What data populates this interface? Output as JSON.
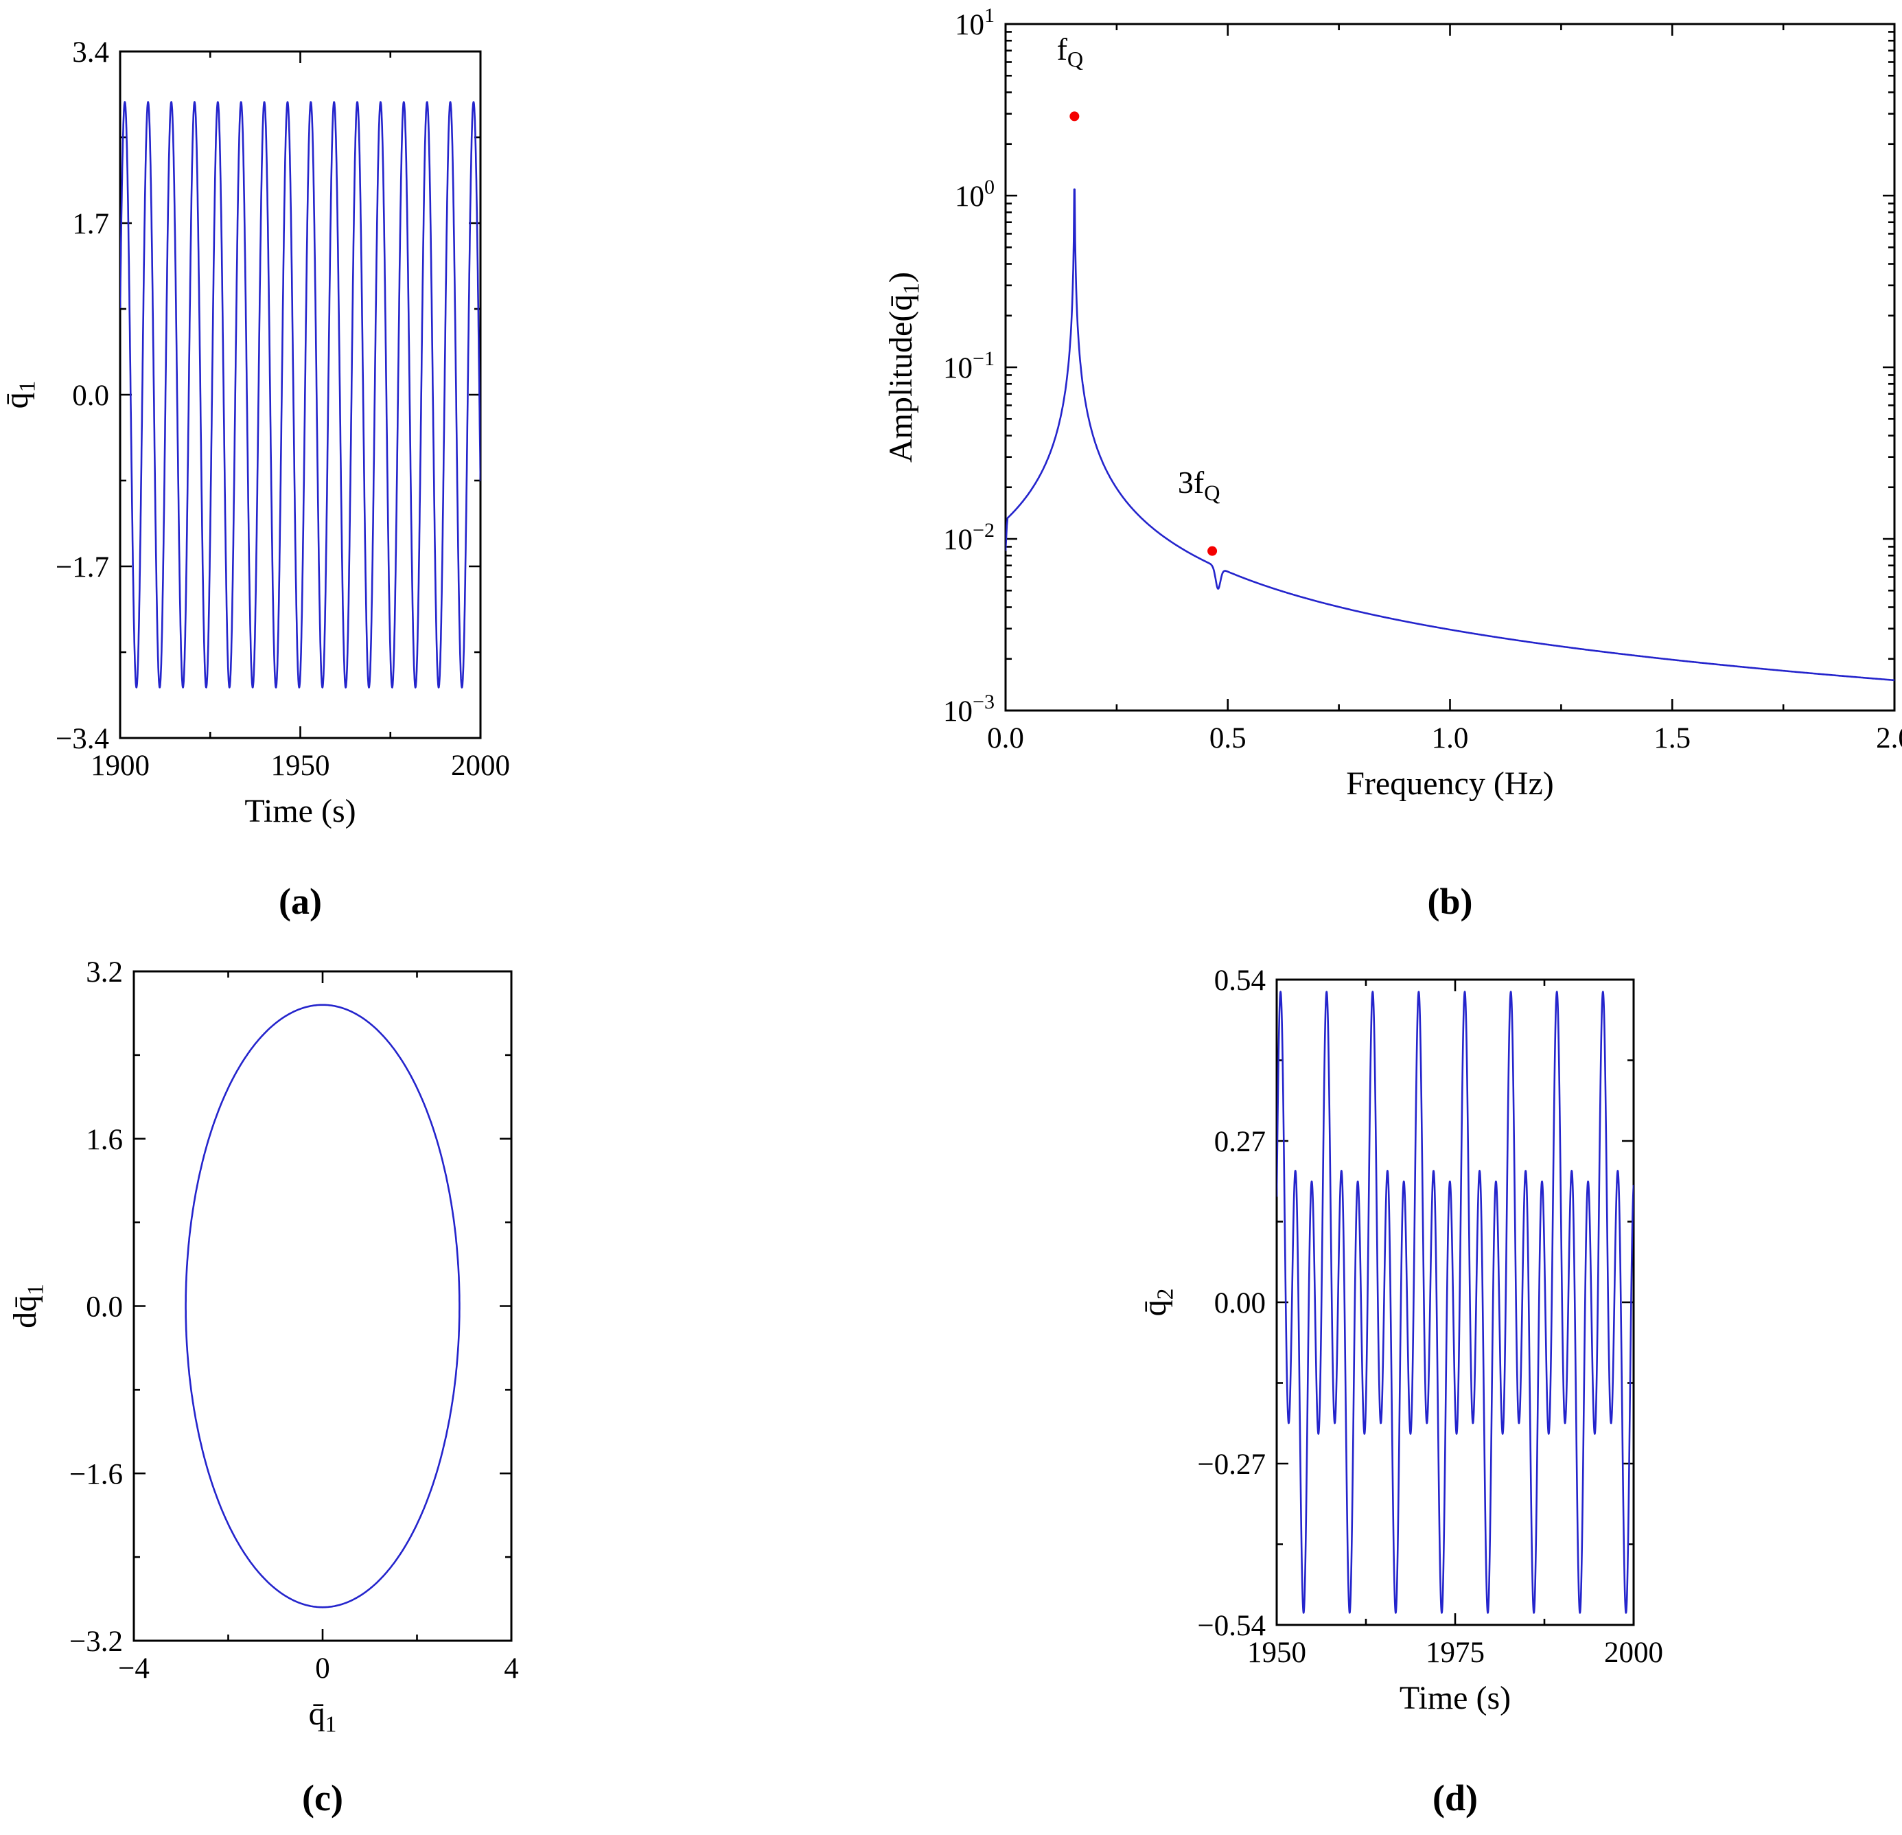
{
  "figure": {
    "background": "#ffffff",
    "curve_color": "#2424cc",
    "marker_color": "#f40000",
    "axis_color": "#000000"
  },
  "captions": {
    "a": "(a)",
    "b": "(b)",
    "c": "(c)",
    "d": "(d)"
  },
  "chart_data": [
    {
      "id": "a",
      "type": "line",
      "title": "",
      "xlabel": "Time (s)",
      "ylabel": "q̄_1",
      "xlim": [
        1900,
        2000
      ],
      "ylim": [
        -3.4,
        3.4
      ],
      "xticks": {
        "values": [
          1900,
          1950,
          2000
        ],
        "labels": [
          "1900",
          "1950",
          "2000"
        ]
      },
      "yticks": {
        "values": [
          3.4,
          1.7,
          0.0,
          -1.7,
          -3.4
        ],
        "labels": [
          "3.4",
          "1.7",
          "0.0",
          "−1.7",
          "−3.4"
        ]
      },
      "xminor": [
        1925,
        1975
      ],
      "yminor": [
        2.55,
        0.85,
        -0.85,
        -2.55
      ],
      "grid": false,
      "signal": {
        "kind": "sum_sines",
        "t0": 1900,
        "components": [
          {
            "amplitude": 2.9,
            "frequency": 0.155,
            "phase": 0.3
          }
        ]
      },
      "samples": 2000
    },
    {
      "id": "b",
      "type": "line",
      "title": "",
      "xlabel": "Frequency (Hz)",
      "ylabel": "Amplitude(q̄_1)",
      "yscale": "log",
      "xlim": [
        0,
        2
      ],
      "ylim": [
        0.001,
        10
      ],
      "xticks": {
        "values": [
          0.0,
          0.5,
          1.0,
          1.5,
          2.0
        ],
        "labels": [
          "0.0",
          "0.5",
          "1.0",
          "1.5",
          "2.0"
        ]
      },
      "yticks_exp": [
        1,
        0,
        -1,
        -2,
        -3
      ],
      "xminor": [
        0.25,
        0.75,
        1.25,
        1.75
      ],
      "grid": false,
      "spectrum": {
        "C": 0.00256,
        "p": 0.87,
        "eps": 0.00088,
        "fQ": 0.155,
        "peak_amp": 2.9,
        "lead_in": [
          [
            0.0,
            0.0085
          ],
          [
            0.003,
            0.012
          ]
        ],
        "notch": {
          "center": 0.478,
          "width": 0.008,
          "depth": 0.25
        }
      },
      "markers": [
        {
          "x": 0.155,
          "y": 2.9,
          "label": "f_Q",
          "label_x": 0.145,
          "label_y": 6.2
        },
        {
          "x": 0.465,
          "y": 0.0085,
          "label": "3f_Q",
          "label_x": 0.435,
          "label_y": 0.0185
        }
      ],
      "samples": 1800
    },
    {
      "id": "c",
      "type": "line",
      "title": "",
      "xlabel": "q̄_1",
      "ylabel": "dq̄_1",
      "xlim": [
        -4,
        4
      ],
      "ylim": [
        -3.2,
        3.2
      ],
      "xticks": {
        "values": [
          -4,
          0,
          4
        ],
        "labels": [
          "−4",
          "0",
          "4"
        ]
      },
      "yticks": {
        "values": [
          3.2,
          1.6,
          0.0,
          -1.6,
          -3.2
        ],
        "labels": [
          "3.2",
          "1.6",
          "0.0",
          "−1.6",
          "−3.2"
        ]
      },
      "xminor": [
        -2,
        2
      ],
      "yminor": [
        2.4,
        0.8,
        -0.8,
        -2.4
      ],
      "grid": false,
      "ellipse": {
        "cx": 0,
        "cy": 0,
        "rx": 2.9,
        "ry": 2.88
      },
      "samples": 720
    },
    {
      "id": "d",
      "type": "line",
      "title": "",
      "xlabel": "Time (s)",
      "ylabel": "q̄_2",
      "xlim": [
        1950,
        2000
      ],
      "ylim": [
        -0.54,
        0.54
      ],
      "xticks": {
        "values": [
          1950,
          1975,
          2000
        ],
        "labels": [
          "1950",
          "1975",
          "2000"
        ]
      },
      "yticks": {
        "values": [
          0.54,
          0.27,
          0.0,
          -0.27,
          -0.54
        ],
        "labels": [
          "0.54",
          "0.27",
          "0.00",
          "−0.27",
          "−0.54"
        ]
      },
      "xminor": [
        1962.5,
        1987.5
      ],
      "yminor": [
        0.405,
        0.135,
        -0.135,
        -0.405
      ],
      "grid": false,
      "signal": {
        "kind": "sum_sines",
        "t0": 1950,
        "components": [
          {
            "amplitude": 0.31,
            "frequency": 0.465,
            "phase": 0.0
          },
          {
            "amplitude": 0.21,
            "frequency": 0.155,
            "phase": 1.0
          }
        ]
      },
      "samples": 2600
    }
  ]
}
